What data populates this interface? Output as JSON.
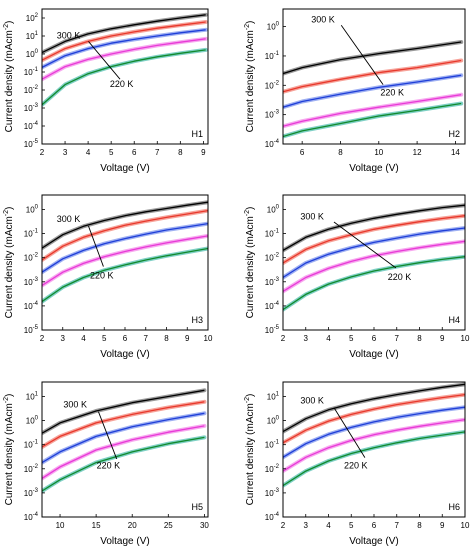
{
  "colors": {
    "axis": "#000000",
    "series": [
      "#000000",
      "#e8382c",
      "#1f3fd8",
      "#e83ad7",
      "#118a2d"
    ],
    "fit_light": [
      "#9a9a9a",
      "#f6a39a",
      "#9fb0f2",
      "#f7a9ef",
      "#7fd0c5"
    ]
  },
  "chart_data": [
    {
      "type": "line",
      "panel": "H1",
      "panel_label": "H1",
      "xlabel": "Voltage (V)",
      "ylabel": "Current density (mAcm",
      "ylabel_sup": "-2",
      "ylabel_close": ")",
      "xlim": [
        2,
        9.2
      ],
      "ylim": [
        -5,
        2.5
      ],
      "log_y": true,
      "xticks": [
        2,
        3,
        4,
        5,
        6,
        7,
        8,
        9
      ],
      "xtick_labels": [
        "2",
        "3",
        "4",
        "5",
        "6",
        "7",
        "8",
        "9"
      ],
      "yticks": [
        -5,
        -4,
        -3,
        -2,
        -1,
        0,
        1,
        2
      ],
      "temp_high": "300 K",
      "temp_low": "220 K",
      "series": [
        {
          "x": [
            2,
            3,
            4,
            5,
            6,
            7,
            8,
            9.1
          ],
          "y": [
            1.2,
            5.0,
            13.0,
            25.0,
            42.0,
            66.0,
            100.0,
            150.0
          ]
        },
        {
          "x": [
            2,
            3,
            4,
            5,
            6,
            7,
            8,
            9.1
          ],
          "y": [
            0.45,
            2.0,
            5.0,
            10.0,
            17.0,
            27.0,
            40.0,
            60.0
          ]
        },
        {
          "x": [
            2,
            3,
            4,
            5,
            6,
            7,
            8,
            9.1
          ],
          "y": [
            0.18,
            0.8,
            2.0,
            4.0,
            6.5,
            10.0,
            15.0,
            22.0
          ]
        },
        {
          "x": [
            2,
            3,
            4,
            5,
            6,
            7,
            8,
            9.1
          ],
          "y": [
            0.04,
            0.2,
            0.5,
            1.0,
            1.8,
            3.0,
            4.5,
            7.0
          ]
        },
        {
          "x": [
            2,
            3,
            4,
            5,
            6,
            7,
            8,
            9.1
          ],
          "y": [
            0.0015,
            0.02,
            0.08,
            0.2,
            0.4,
            0.7,
            1.1,
            1.7
          ]
        }
      ]
    },
    {
      "type": "line",
      "panel": "H2",
      "panel_label": "H2",
      "xlabel": "Voltage (V)",
      "ylabel": "Current density (mAcm",
      "ylabel_sup": "-2",
      "ylabel_close": ")",
      "xlim": [
        5,
        14.5
      ],
      "ylim": [
        -4,
        0.6
      ],
      "log_y": true,
      "xticks": [
        6,
        8,
        10,
        12,
        14
      ],
      "xtick_labels": [
        "6",
        "8",
        "10",
        "12",
        "14"
      ],
      "yticks": [
        -4,
        -3,
        -2,
        -1,
        0
      ],
      "temp_high": "300 K",
      "temp_low": "220 K",
      "series": [
        {
          "x": [
            5,
            6,
            8,
            10,
            12,
            14.3
          ],
          "y": [
            0.025,
            0.04,
            0.075,
            0.12,
            0.18,
            0.3
          ]
        },
        {
          "x": [
            5,
            6,
            8,
            10,
            12,
            14.3
          ],
          "y": [
            0.006,
            0.009,
            0.016,
            0.027,
            0.04,
            0.07
          ]
        },
        {
          "x": [
            5,
            6,
            8,
            10,
            12,
            14.3
          ],
          "y": [
            0.0018,
            0.0028,
            0.005,
            0.0085,
            0.013,
            0.022
          ]
        },
        {
          "x": [
            5,
            6,
            8,
            10,
            12,
            14.3
          ],
          "y": [
            0.0004,
            0.0006,
            0.0011,
            0.0018,
            0.0028,
            0.0048
          ]
        },
        {
          "x": [
            5,
            6,
            8,
            10,
            12,
            14.3
          ],
          "y": [
            0.00018,
            0.00028,
            0.0005,
            0.0009,
            0.0014,
            0.0024
          ]
        }
      ]
    },
    {
      "type": "line",
      "panel": "H3",
      "panel_label": "H3",
      "xlabel": "Voltage (V)",
      "ylabel": "Current density (mAcm",
      "ylabel_sup": "-2",
      "ylabel_close": ")",
      "xlim": [
        2,
        10
      ],
      "ylim": [
        -5,
        0.6
      ],
      "log_y": true,
      "xticks": [
        2,
        3,
        4,
        5,
        6,
        7,
        8,
        9,
        10
      ],
      "xtick_labels": [
        "2",
        "3",
        "4",
        "5",
        "6",
        "7",
        "8",
        "9",
        "10"
      ],
      "yticks": [
        -5,
        -4,
        -3,
        -2,
        -1,
        0
      ],
      "temp_high": "300 K",
      "temp_low": "220 K",
      "series": [
        {
          "x": [
            2,
            3,
            4,
            5,
            6,
            7,
            8,
            9,
            10
          ],
          "y": [
            0.025,
            0.09,
            0.2,
            0.35,
            0.55,
            0.8,
            1.1,
            1.5,
            2.0
          ]
        },
        {
          "x": [
            2,
            3,
            4,
            5,
            6,
            7,
            8,
            9,
            10
          ],
          "y": [
            0.008,
            0.03,
            0.07,
            0.13,
            0.22,
            0.33,
            0.47,
            0.65,
            0.9
          ]
        },
        {
          "x": [
            2,
            3,
            4,
            5,
            6,
            7,
            8,
            9,
            10
          ],
          "y": [
            0.0025,
            0.009,
            0.02,
            0.038,
            0.062,
            0.095,
            0.14,
            0.19,
            0.26
          ]
        },
        {
          "x": [
            2,
            3,
            4,
            5,
            6,
            7,
            8,
            9,
            10
          ],
          "y": [
            0.0007,
            0.0025,
            0.0058,
            0.011,
            0.018,
            0.028,
            0.041,
            0.058,
            0.08
          ]
        },
        {
          "x": [
            2,
            3,
            4,
            5,
            6,
            7,
            8,
            9,
            10
          ],
          "y": [
            0.00015,
            0.0006,
            0.0015,
            0.003,
            0.005,
            0.008,
            0.012,
            0.017,
            0.024
          ]
        }
      ]
    },
    {
      "type": "line",
      "panel": "H4",
      "panel_label": "H4",
      "xlabel": "Voltage (V)",
      "ylabel": "Current density (mAcm",
      "ylabel_sup": "-2",
      "ylabel_close": ")",
      "xlim": [
        2,
        10
      ],
      "ylim": [
        -5,
        0.6
      ],
      "log_y": true,
      "xticks": [
        2,
        3,
        4,
        5,
        6,
        7,
        8,
        9,
        10
      ],
      "xtick_labels": [
        "2",
        "3",
        "4",
        "5",
        "6",
        "7",
        "8",
        "9",
        "10"
      ],
      "yticks": [
        -5,
        -4,
        -3,
        -2,
        -1,
        0
      ],
      "temp_high": "300 K",
      "temp_low": "220 K",
      "series": [
        {
          "x": [
            2,
            3,
            4,
            5,
            6,
            7,
            8,
            9,
            10
          ],
          "y": [
            0.02,
            0.07,
            0.15,
            0.27,
            0.43,
            0.63,
            0.88,
            1.2,
            1.5
          ]
        },
        {
          "x": [
            2,
            3,
            4,
            5,
            6,
            7,
            8,
            9,
            10
          ],
          "y": [
            0.006,
            0.022,
            0.05,
            0.09,
            0.15,
            0.22,
            0.31,
            0.42,
            0.55
          ]
        },
        {
          "x": [
            2,
            3,
            4,
            5,
            6,
            7,
            8,
            9,
            10
          ],
          "y": [
            0.0015,
            0.006,
            0.014,
            0.026,
            0.043,
            0.065,
            0.095,
            0.13,
            0.17
          ]
        },
        {
          "x": [
            2,
            3,
            4,
            5,
            6,
            7,
            8,
            9,
            10
          ],
          "y": [
            0.0004,
            0.0015,
            0.0036,
            0.007,
            0.012,
            0.018,
            0.026,
            0.036,
            0.048
          ]
        },
        {
          "x": [
            2,
            3,
            4,
            5,
            6,
            7,
            8,
            9,
            10
          ],
          "y": [
            7e-05,
            0.0003,
            0.0008,
            0.0016,
            0.0028,
            0.0043,
            0.0062,
            0.0085,
            0.011
          ]
        }
      ]
    },
    {
      "type": "line",
      "panel": "H5",
      "panel_label": "H5",
      "xlabel": "Voltage (V)",
      "ylabel": "Current density (mAcm",
      "ylabel_sup": "-2",
      "ylabel_close": ")",
      "xlim": [
        7.5,
        30.5
      ],
      "ylim": [
        -4,
        1.6
      ],
      "log_y": true,
      "xticks": [
        10,
        15,
        20,
        25,
        30
      ],
      "xtick_labels": [
        "10",
        "15",
        "20",
        "25",
        "30"
      ],
      "yticks": [
        -4,
        -3,
        -2,
        -1,
        0,
        1
      ],
      "temp_high": "300 K",
      "temp_low": "220 K",
      "series": [
        {
          "x": [
            7.5,
            10,
            15,
            20,
            25,
            30
          ],
          "y": [
            0.3,
            0.8,
            2.5,
            5.5,
            10.0,
            18.0
          ]
        },
        {
          "x": [
            7.5,
            10,
            15,
            20,
            25,
            30
          ],
          "y": [
            0.08,
            0.22,
            0.8,
            1.8,
            3.5,
            6.0
          ]
        },
        {
          "x": [
            7.5,
            10,
            15,
            20,
            25,
            30
          ],
          "y": [
            0.018,
            0.05,
            0.22,
            0.55,
            1.1,
            2.0
          ]
        },
        {
          "x": [
            7.5,
            10,
            15,
            20,
            25,
            30
          ],
          "y": [
            0.004,
            0.012,
            0.06,
            0.16,
            0.33,
            0.6
          ]
        },
        {
          "x": [
            7.5,
            10,
            15,
            20,
            25,
            30
          ],
          "y": [
            0.0012,
            0.0035,
            0.018,
            0.05,
            0.11,
            0.2
          ]
        }
      ]
    },
    {
      "type": "line",
      "panel": "H6",
      "panel_label": "H6",
      "xlabel": "Voltage (V)",
      "ylabel": "Current density (mAcm",
      "ylabel_sup": "-2",
      "ylabel_close": ")",
      "xlim": [
        2,
        10
      ],
      "ylim": [
        -4,
        1.6
      ],
      "log_y": true,
      "xticks": [
        2,
        3,
        4,
        5,
        6,
        7,
        8,
        9,
        10
      ],
      "xtick_labels": [
        "2",
        "3",
        "4",
        "5",
        "6",
        "7",
        "8",
        "9",
        "10"
      ],
      "yticks": [
        -4,
        -3,
        -2,
        -1,
        0,
        1
      ],
      "temp_high": "300 K",
      "temp_low": "220 K",
      "series": [
        {
          "x": [
            2,
            3,
            4,
            5,
            6,
            7,
            8,
            9,
            10
          ],
          "y": [
            0.35,
            1.2,
            2.8,
            5.0,
            8.0,
            12.0,
            17.0,
            24.0,
            32.0
          ]
        },
        {
          "x": [
            2,
            3,
            4,
            5,
            6,
            7,
            8,
            9,
            10
          ],
          "y": [
            0.12,
            0.4,
            0.95,
            1.8,
            3.0,
            4.6,
            6.5,
            9.0,
            12.0
          ]
        },
        {
          "x": [
            2,
            3,
            4,
            5,
            6,
            7,
            8,
            9,
            10
          ],
          "y": [
            0.03,
            0.11,
            0.27,
            0.52,
            0.88,
            1.35,
            1.95,
            2.7,
            3.6
          ]
        },
        {
          "x": [
            2,
            3,
            4,
            5,
            6,
            7,
            8,
            9,
            10
          ],
          "y": [
            0.008,
            0.03,
            0.075,
            0.15,
            0.26,
            0.4,
            0.58,
            0.8,
            1.1
          ]
        },
        {
          "x": [
            2,
            3,
            4,
            5,
            6,
            7,
            8,
            9,
            10
          ],
          "y": [
            0.002,
            0.008,
            0.021,
            0.043,
            0.075,
            0.12,
            0.18,
            0.25,
            0.34
          ]
        }
      ]
    }
  ]
}
